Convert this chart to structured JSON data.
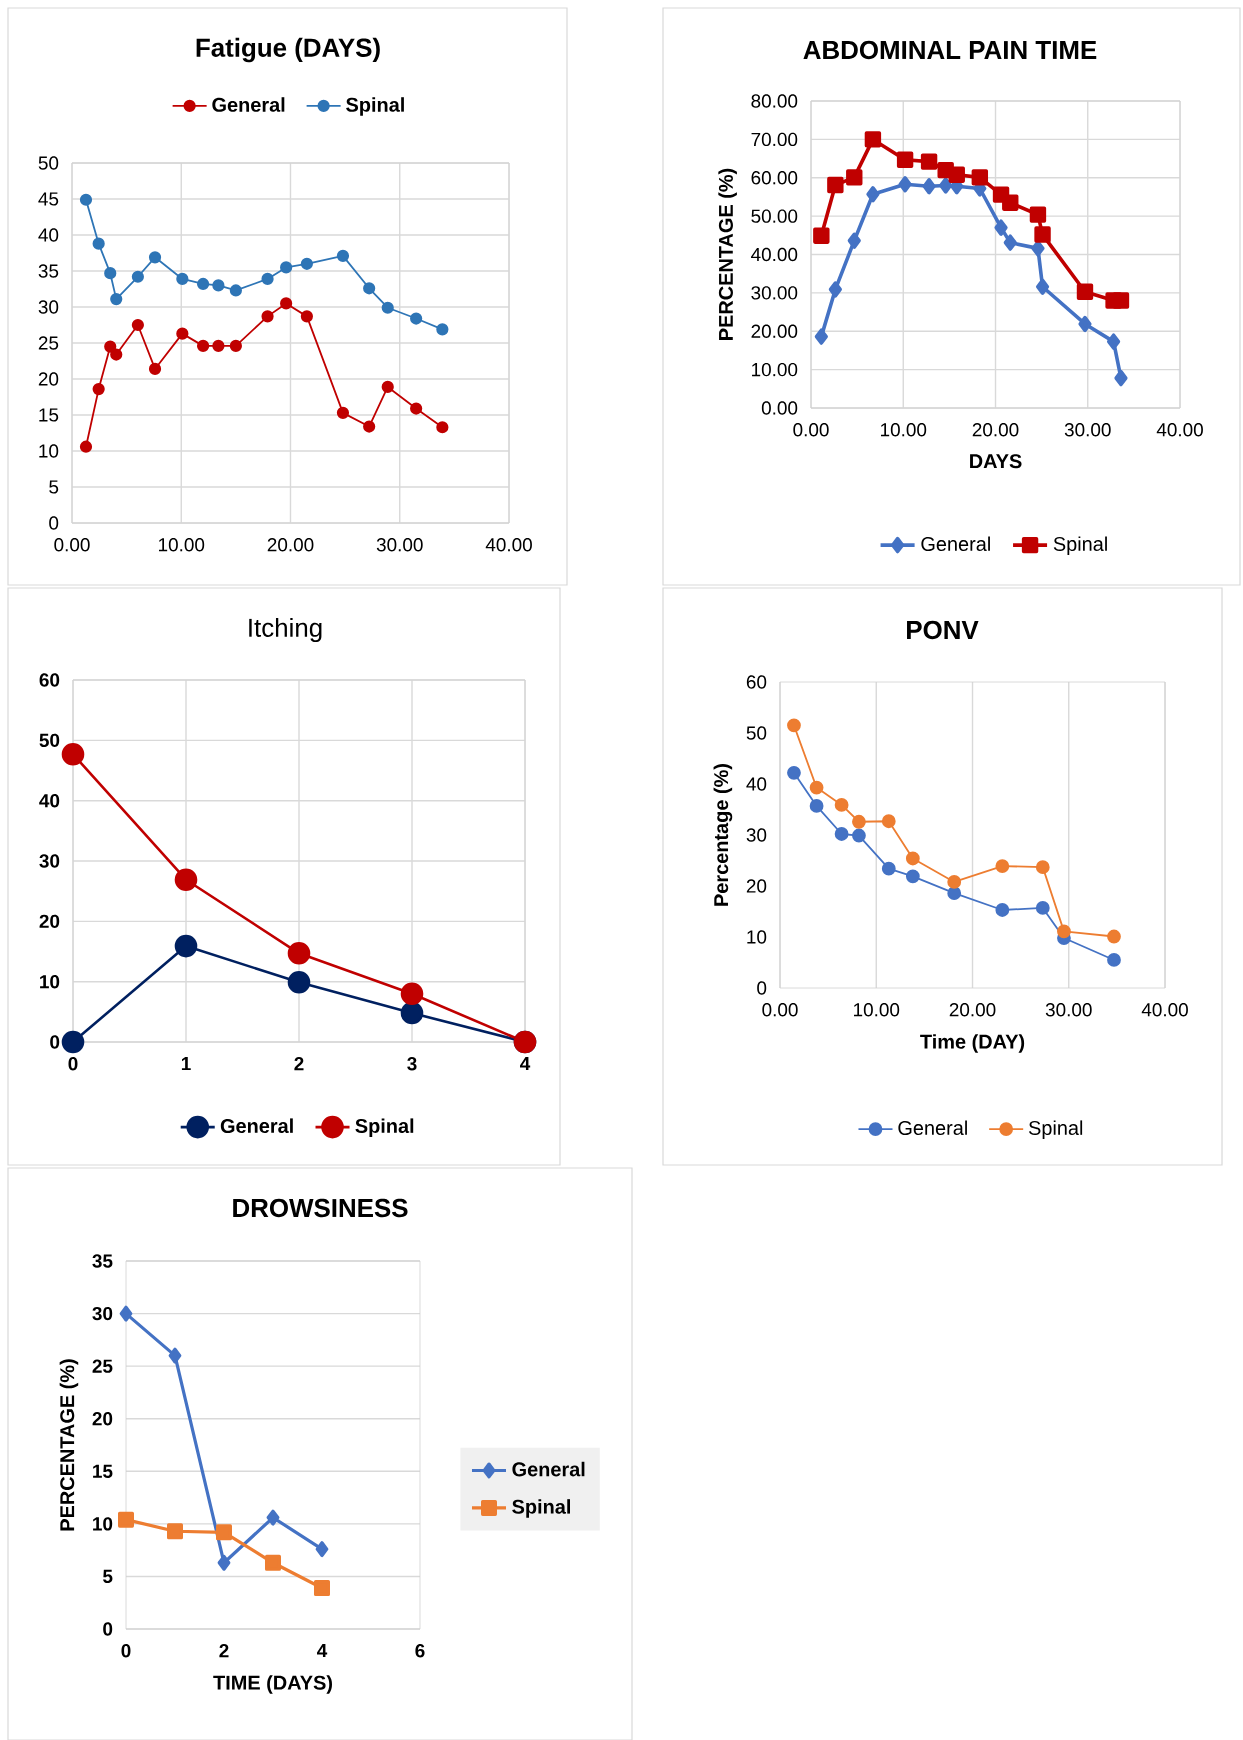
{
  "chart_data": [
    {
      "type": "line",
      "title": "Fatigue (DAYS)",
      "x": [
        1.28,
        2.44,
        3.5,
        4.05,
        6.03,
        7.6,
        10.1,
        12.0,
        13.4,
        15.0,
        17.9,
        19.6,
        21.5,
        24.8,
        27.2,
        28.9,
        31.5,
        33.9
      ],
      "series": [
        {
          "name": "General",
          "color": "#c00000",
          "marker": "circle",
          "values": [
            10.6,
            18.6,
            24.5,
            23.4,
            27.5,
            21.4,
            26.3,
            24.6,
            24.6,
            24.6,
            28.7,
            30.5,
            28.7,
            15.3,
            13.4,
            18.9,
            15.9,
            13.3
          ]
        },
        {
          "name": "Spinal",
          "color": "#2e75b6",
          "marker": "circle",
          "values": [
            44.9,
            38.8,
            34.7,
            31.1,
            34.2,
            36.9,
            33.9,
            33.2,
            33.0,
            32.3,
            33.9,
            35.5,
            36.0,
            37.1,
            32.6,
            29.9,
            28.4,
            26.9
          ]
        }
      ],
      "xlim": [
        0,
        40
      ],
      "xticks": [
        {
          "value": 0,
          "label": "0.00"
        },
        {
          "value": 10,
          "label": "10.00"
        },
        {
          "value": 20,
          "label": "20.00"
        },
        {
          "value": 30,
          "label": "30.00"
        },
        {
          "value": 40,
          "label": "40.00"
        }
      ],
      "ylim": [
        0,
        50
      ],
      "yticks": [
        0,
        5,
        10,
        15,
        20,
        25,
        30,
        35,
        40,
        45,
        50
      ],
      "grid": true,
      "legend": "top"
    },
    {
      "type": "line",
      "title": "ABDOMINAL PAIN TIME",
      "xlabel": "DAYS",
      "ylabel": "PERCENTAGE (%)",
      "x": [
        1.12,
        2.64,
        4.69,
        6.71,
        10.2,
        12.8,
        14.6,
        15.8,
        18.3,
        20.6,
        21.6,
        24.6,
        25.1,
        29.7,
        32.8,
        33.6
      ],
      "series": [
        {
          "name": "General",
          "color": "#4472c4",
          "marker": "diamond",
          "values": [
            18.6,
            30.9,
            43.6,
            55.7,
            58.3,
            57.8,
            58.0,
            57.8,
            57.2,
            47.0,
            43.1,
            41.6,
            31.6,
            21.9,
            17.3,
            7.8
          ]
        },
        {
          "name": "Spinal",
          "color": "#c00000",
          "marker": "square",
          "values": [
            44.9,
            58.1,
            60.1,
            70.0,
            64.7,
            64.2,
            62.0,
            60.8,
            60.1,
            55.6,
            53.5,
            50.4,
            45.2,
            30.3,
            28.0,
            28.0
          ]
        }
      ],
      "xlim": [
        0,
        40
      ],
      "xticks": [
        {
          "value": 0,
          "label": "0.00"
        },
        {
          "value": 10,
          "label": "10.00"
        },
        {
          "value": 20,
          "label": "20.00"
        },
        {
          "value": 30,
          "label": "30.00"
        },
        {
          "value": 40,
          "label": "40.00"
        }
      ],
      "ylim": [
        0,
        80
      ],
      "yticks": [
        {
          "value": 0,
          "label": "0.00"
        },
        {
          "value": 10,
          "label": "10.00"
        },
        {
          "value": 20,
          "label": "20.00"
        },
        {
          "value": 30,
          "label": "30.00"
        },
        {
          "value": 40,
          "label": "40.00"
        },
        {
          "value": 50,
          "label": "50.00"
        },
        {
          "value": 60,
          "label": "60.00"
        },
        {
          "value": 70,
          "label": "70.00"
        },
        {
          "value": 80,
          "label": "80.00"
        }
      ],
      "grid": true,
      "legend": "bottom"
    },
    {
      "type": "line",
      "title": "Itching",
      "x": [
        0,
        1,
        2,
        3,
        4
      ],
      "series": [
        {
          "name": "General",
          "color": "#002060",
          "marker": "circle",
          "values": [
            0,
            15.9,
            9.9,
            4.8,
            0
          ]
        },
        {
          "name": "Spinal",
          "color": "#c00000",
          "marker": "circle",
          "values": [
            47.7,
            26.9,
            14.7,
            8.0,
            0
          ]
        }
      ],
      "xlim": [
        0,
        4
      ],
      "xticks": [
        0,
        1,
        2,
        3,
        4
      ],
      "ylim": [
        0,
        60
      ],
      "yticks": [
        0,
        10,
        20,
        30,
        40,
        50,
        60
      ],
      "grid": true,
      "legend": "bottom"
    },
    {
      "type": "line",
      "title": "PONV",
      "xlabel": "Time (DAY)",
      "ylabel": "Percentage (%)",
      "x": [
        1.45,
        3.8,
        6.4,
        8.2,
        11.3,
        13.8,
        18.1,
        23.1,
        27.3,
        29.5,
        34.7
      ],
      "series": [
        {
          "name": "General",
          "color": "#4472c4",
          "marker": "circle",
          "values": [
            42.2,
            35.7,
            30.2,
            29.9,
            23.4,
            21.9,
            18.6,
            15.3,
            15.7,
            9.8,
            5.5
          ]
        },
        {
          "name": "Spinal",
          "color": "#ed7d31",
          "marker": "circle",
          "values": [
            51.5,
            39.3,
            35.9,
            32.6,
            32.7,
            25.4,
            20.8,
            23.9,
            23.7,
            11.1,
            10.1
          ]
        }
      ],
      "xlim": [
        0,
        40
      ],
      "xticks": [
        {
          "value": 0,
          "label": "0.00"
        },
        {
          "value": 10,
          "label": "10.00"
        },
        {
          "value": 20,
          "label": "20.00"
        },
        {
          "value": 30,
          "label": "30.00"
        },
        {
          "value": 40,
          "label": "40.00"
        }
      ],
      "ylim": [
        0,
        60
      ],
      "yticks": [
        0,
        10,
        20,
        30,
        40,
        50,
        60
      ],
      "grid": "x",
      "legend": "bottom"
    },
    {
      "type": "line",
      "title": "DROWSINESS",
      "xlabel": "TIME (DAYS)",
      "ylabel": "PERCENTAGE (%)",
      "x": [
        0,
        1,
        2,
        3,
        4
      ],
      "series": [
        {
          "name": "General",
          "color": "#4472c4",
          "marker": "diamond",
          "values": [
            30.0,
            26.0,
            6.3,
            10.6,
            7.6
          ]
        },
        {
          "name": "Spinal",
          "color": "#ed7d31",
          "marker": "square",
          "values": [
            10.4,
            9.3,
            9.2,
            6.3,
            3.9
          ]
        }
      ],
      "xlim": [
        0,
        6
      ],
      "xticks": [
        0,
        2,
        4,
        6
      ],
      "ylim": [
        0,
        35
      ],
      "yticks": [
        0,
        5,
        10,
        15,
        20,
        25,
        30,
        35
      ],
      "grid": "y",
      "legend": "right"
    }
  ]
}
